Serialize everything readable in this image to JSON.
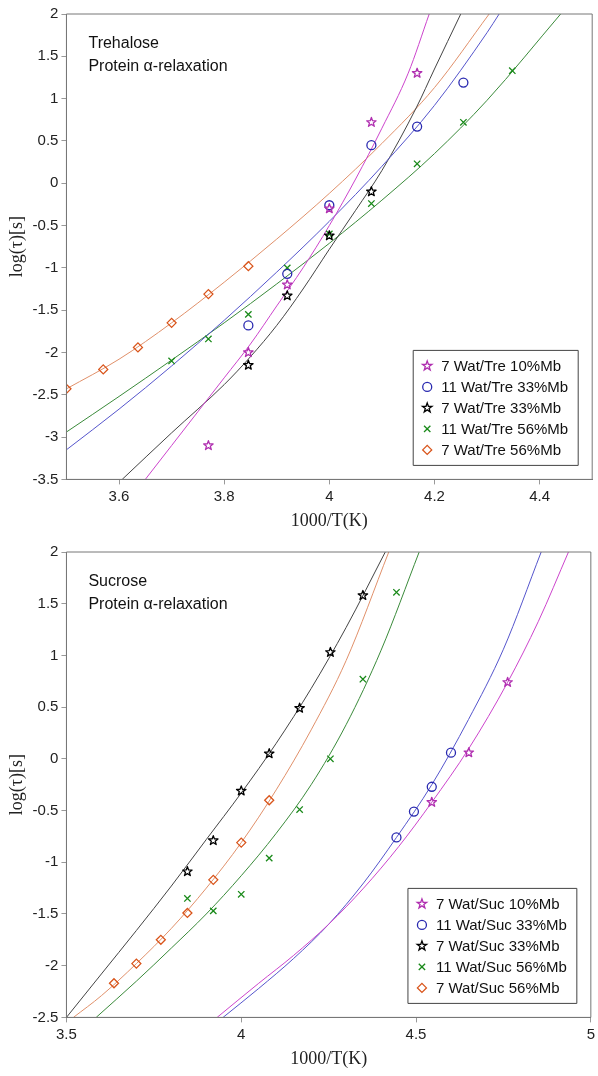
{
  "chart_data": [
    {
      "type": "scatter",
      "xlabel": "1000/T(K)",
      "ylabel": "log(τ)[s]",
      "annotations": [
        "Trehalose",
        "Protein α-relaxation"
      ],
      "xlim": [
        3.5,
        4.5
      ],
      "xticks": [
        3.6,
        3.8,
        4,
        4.2,
        4.4
      ],
      "ylim": [
        -3.5,
        2
      ],
      "yticks": [
        -3.5,
        -3,
        -2.5,
        -2,
        -1.5,
        -1,
        -0.5,
        0,
        0.5,
        1,
        1.5,
        2
      ],
      "grid": false,
      "legend": "bottom right",
      "series": [
        {
          "name": "7 Wat/Tre 10%Mb",
          "color": "#b02fb0",
          "marker": "star",
          "x": [
            3.77,
            3.846,
            3.92,
            4.0,
            4.08,
            4.167
          ],
          "values": [
            -3.1,
            -2.0,
            -1.2,
            -0.3,
            0.72,
            1.3
          ]
        },
        {
          "name": "11 Wat/Tre 33%Mb",
          "color": "#2a2ab0",
          "marker": "circle",
          "x": [
            3.846,
            3.92,
            4.0,
            4.08,
            4.167,
            4.255
          ],
          "values": [
            -1.68,
            -1.07,
            -0.26,
            0.45,
            0.67,
            1.19
          ]
        },
        {
          "name": "7 Wat/Tre 33%Mb",
          "color": "#000000",
          "marker": "star",
          "x": [
            3.846,
            3.92,
            4.0,
            4.08
          ],
          "values": [
            -2.15,
            -1.33,
            -0.62,
            -0.1
          ]
        },
        {
          "name": "11 Wat/Tre 56%Mb",
          "color": "#1a8a1a",
          "marker": "cross",
          "x": [
            3.7,
            3.77,
            3.846,
            3.92,
            4.0,
            4.08,
            4.167,
            4.255,
            4.348
          ],
          "values": [
            -2.1,
            -1.84,
            -1.55,
            -1.0,
            -0.6,
            -0.24,
            0.23,
            0.72,
            1.33
          ]
        },
        {
          "name": "7 Wat/Tre 56%Mb",
          "color": "#d9541a",
          "marker": "diamond",
          "x": [
            3.5,
            3.57,
            3.636,
            3.7,
            3.77,
            3.846
          ],
          "values": [
            -2.43,
            -2.2,
            -1.94,
            -1.65,
            -1.31,
            -0.98
          ]
        },
        {
          "type": "line",
          "color": "#cc44cc",
          "marker": "none",
          "x": [
            3.65,
            3.7,
            3.75,
            3.8,
            3.85,
            3.9,
            3.95,
            4.0,
            4.05,
            4.1,
            4.15,
            4.19
          ],
          "values": [
            -3.5,
            -3.1,
            -2.7,
            -2.3,
            -1.9,
            -1.45,
            -1.0,
            -0.5,
            0.05,
            0.65,
            1.3,
            2.0
          ]
        },
        {
          "type": "line",
          "color": "#5555cc",
          "marker": "none",
          "x": [
            3.5,
            3.6,
            3.7,
            3.8,
            3.9,
            4.0,
            4.1,
            4.2,
            4.3,
            4.323
          ],
          "values": [
            -3.15,
            -2.67,
            -2.16,
            -1.62,
            -1.05,
            -0.45,
            0.2,
            0.92,
            1.78,
            2.0
          ]
        },
        {
          "type": "line",
          "color": "#444444",
          "marker": "none",
          "x": [
            3.606,
            3.7,
            3.8,
            3.85,
            3.9,
            3.95,
            4.0,
            4.05,
            4.1,
            4.166,
            4.2,
            4.25
          ],
          "values": [
            -3.5,
            -2.95,
            -2.38,
            -2.05,
            -1.68,
            -1.25,
            -0.78,
            -0.32,
            0.15,
            0.9,
            1.35,
            2.0
          ]
        },
        {
          "type": "line",
          "color": "#3a8a3a",
          "marker": "none",
          "x": [
            3.5,
            3.6,
            3.7,
            3.8,
            3.9,
            4.0,
            4.1,
            4.2,
            4.3,
            4.44
          ],
          "values": [
            -2.94,
            -2.52,
            -2.09,
            -1.65,
            -1.19,
            -0.71,
            -0.2,
            0.35,
            0.98,
            2.0
          ]
        },
        {
          "type": "line",
          "color": "#e0906a",
          "marker": "none",
          "x": [
            3.5,
            3.6,
            3.7,
            3.8,
            3.9,
            4.0,
            4.1,
            4.2,
            4.304
          ],
          "values": [
            -2.43,
            -2.08,
            -1.65,
            -1.17,
            -0.66,
            -0.12,
            0.47,
            1.13,
            2.0
          ]
        }
      ]
    },
    {
      "type": "scatter",
      "xlabel": "1000/T(K)",
      "ylabel": "log(τ)[s]",
      "annotations": [
        "Sucrose",
        "Protein α-relaxation"
      ],
      "xlim": [
        3.5,
        5
      ],
      "xticks": [
        3.5,
        4,
        4.5,
        5
      ],
      "ylim": [
        -2.5,
        2
      ],
      "yticks": [
        -2.5,
        -2,
        -1.5,
        -1,
        -0.5,
        0,
        0.5,
        1,
        1.5,
        2
      ],
      "grid": false,
      "legend": "bottom right",
      "series": [
        {
          "name": "7 Wat/Suc 10%Mb",
          "color": "#b02fb0",
          "marker": "star",
          "x": [
            4.545,
            4.651,
            4.762
          ],
          "values": [
            -0.42,
            0.06,
            0.74
          ]
        },
        {
          "name": "11 Wat/Suc 33%Mb",
          "color": "#2a2ab0",
          "marker": "circle",
          "x": [
            4.444,
            4.494,
            4.545,
            4.6
          ],
          "values": [
            -0.76,
            -0.51,
            -0.27,
            0.06
          ]
        },
        {
          "name": "7 Wat/Suc 33%Mb",
          "color": "#000000",
          "marker": "star",
          "x": [
            3.846,
            3.92,
            4.0,
            4.08,
            4.167,
            4.255,
            4.348
          ],
          "values": [
            -1.09,
            -0.79,
            -0.31,
            0.05,
            0.49,
            1.03,
            1.58
          ]
        },
        {
          "name": "11 Wat/Suc 56%Mb",
          "color": "#1a8a1a",
          "marker": "cross",
          "x": [
            3.846,
            3.92,
            4.0,
            4.08,
            4.167,
            4.255,
            4.348,
            4.444
          ],
          "values": [
            -1.35,
            -1.47,
            -1.31,
            -0.96,
            -0.49,
            0.0,
            0.77,
            1.61
          ]
        },
        {
          "name": "7 Wat/Suc 56%Mb",
          "color": "#d9541a",
          "marker": "diamond",
          "x": [
            3.636,
            3.7,
            3.77,
            3.846,
            3.92,
            4.0,
            4.08
          ],
          "values": [
            -2.17,
            -1.98,
            -1.75,
            -1.49,
            -1.17,
            -0.81,
            -0.4
          ]
        },
        {
          "type": "line",
          "color": "#cc44cc",
          "marker": "none",
          "x": [
            3.931,
            4.05,
            4.15,
            4.25,
            4.35,
            4.45,
            4.545,
            4.651,
            4.762,
            4.85,
            4.936
          ],
          "values": [
            -2.5,
            -2.17,
            -1.9,
            -1.6,
            -1.25,
            -0.85,
            -0.42,
            0.1,
            0.74,
            1.33,
            2.0
          ]
        },
        {
          "type": "line",
          "color": "#5555cc",
          "marker": "none",
          "x": [
            3.948,
            4.05,
            4.15,
            4.25,
            4.35,
            4.444,
            4.545,
            4.65,
            4.75,
            4.858
          ],
          "values": [
            -2.5,
            -2.22,
            -1.93,
            -1.6,
            -1.2,
            -0.76,
            -0.25,
            0.38,
            1.06,
            2.0
          ]
        },
        {
          "type": "line",
          "color": "#444444",
          "marker": "none",
          "x": [
            3.5,
            3.6,
            3.7,
            3.8,
            3.9,
            4.0,
            4.1,
            4.2,
            4.3,
            4.412
          ],
          "values": [
            -2.5,
            -2.08,
            -1.66,
            -1.23,
            -0.78,
            -0.33,
            0.15,
            0.68,
            1.27,
            2.0
          ]
        },
        {
          "type": "line",
          "color": "#3a8a3a",
          "marker": "none",
          "x": [
            3.585,
            3.7,
            3.8,
            3.9,
            4.0,
            4.1,
            4.2,
            4.3,
            4.4,
            4.509
          ],
          "values": [
            -2.5,
            -2.15,
            -1.83,
            -1.5,
            -1.13,
            -0.72,
            -0.25,
            0.33,
            1.05,
            2.0
          ]
        },
        {
          "type": "line",
          "color": "#e0906a",
          "marker": "none",
          "x": [
            3.52,
            3.6,
            3.7,
            3.8,
            3.9,
            4.0,
            4.1,
            4.2,
            4.3,
            4.422
          ],
          "values": [
            -2.5,
            -2.29,
            -1.98,
            -1.64,
            -1.25,
            -0.81,
            -0.3,
            0.28,
            0.95,
            2.0
          ]
        }
      ]
    }
  ]
}
